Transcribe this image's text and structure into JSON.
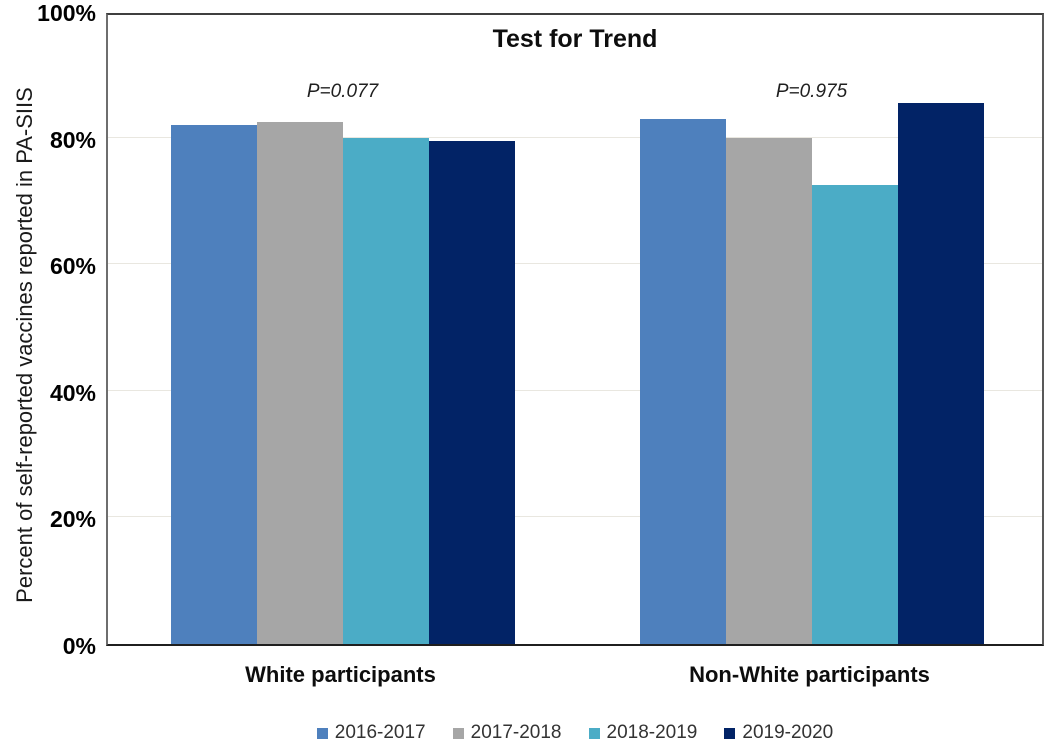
{
  "chart_data": {
    "type": "bar",
    "title": "Test for Trend",
    "ylabel": "Percent of self-reported vaccines reported in PA-SIIS",
    "xlabel": "",
    "categories": [
      "White participants",
      "Non-White participants"
    ],
    "series": [
      {
        "name": "2016-2017",
        "color": "#4e80bd",
        "values": [
          82,
          83
        ]
      },
      {
        "name": "2017-2018",
        "color": "#a6a6a6",
        "values": [
          82.5,
          80
        ]
      },
      {
        "name": "2018-2019",
        "color": "#4bacc6",
        "values": [
          80,
          72.5
        ]
      },
      {
        "name": "2019-2020",
        "color": "#022366",
        "values": [
          79.5,
          85.5
        ]
      }
    ],
    "annotations": [
      {
        "text": "P=0.077",
        "category_index": 0
      },
      {
        "text": "P=0.975",
        "category_index": 1
      }
    ],
    "ylim": [
      0,
      100
    ],
    "yticks": [
      {
        "value": 0,
        "label": "0%"
      },
      {
        "value": 20,
        "label": "20%"
      },
      {
        "value": 40,
        "label": "40%"
      },
      {
        "value": 60,
        "label": "60%"
      },
      {
        "value": 80,
        "label": "80%"
      },
      {
        "value": 100,
        "label": "100%"
      }
    ],
    "grid": true,
    "legend_position": "bottom"
  }
}
